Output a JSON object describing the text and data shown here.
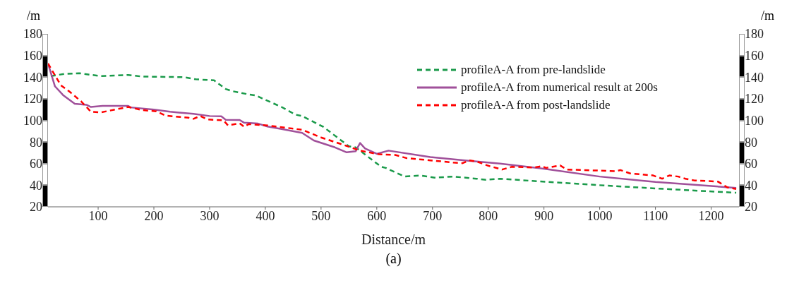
{
  "chart_data": {
    "type": "line",
    "xlabel": "Distance/m",
    "ylabel": "/m",
    "y2label": "/m",
    "annotations": [
      "(a)"
    ],
    "xlim": [
      10,
      1250
    ],
    "xticks": [
      100,
      200,
      300,
      400,
      500,
      600,
      700,
      800,
      900,
      1000,
      1100,
      1200
    ],
    "ylim": [
      20,
      180
    ],
    "yticks": [
      20,
      40,
      60,
      80,
      100,
      120,
      140,
      160,
      180
    ],
    "y2lim": [
      20,
      180
    ],
    "y2ticks": [
      20,
      40,
      60,
      80,
      100,
      120,
      140,
      160,
      180
    ],
    "grid": false,
    "legend": "top right",
    "marker": "none",
    "series": [
      {
        "name": "profileA-A from pre-landslide",
        "color": "#1a9a4a",
        "line_style": "dashed",
        "x": [
          15,
          40,
          66,
          104,
          154,
          179,
          254,
          275,
          308,
          329,
          341,
          370,
          383,
          400,
          429,
          454,
          466,
          504,
          550,
          562,
          608,
          616,
          650,
          679,
          704,
          737,
          779,
          796,
          821,
          879,
          1000,
          1100,
          1245
        ],
        "values": [
          141,
          143,
          143.6,
          141,
          142,
          140.5,
          140,
          138,
          137,
          129,
          127,
          124,
          123,
          119,
          112.4,
          105.3,
          104,
          94,
          76,
          75,
          57,
          56,
          48,
          49,
          47,
          48,
          46,
          45,
          46,
          44,
          40,
          37,
          33
        ]
      },
      {
        "name": "profileA-A from numerical result at 200s",
        "color": "#a0509a",
        "line_style": "solid",
        "x": [
          10,
          22.5,
          37,
          58,
          79,
          87,
          108,
          154,
          158,
          200,
          229,
          271,
          300,
          321,
          329,
          354,
          362,
          387,
          404,
          429,
          466,
          487,
          525,
          546,
          562,
          570,
          579,
          600,
          621,
          696,
          758,
          821,
          904,
          1000,
          1100,
          1245
        ],
        "values": [
          152.6,
          131.5,
          123.4,
          115.4,
          114.4,
          112.4,
          113.4,
          113.4,
          112,
          110,
          108,
          106,
          104,
          103.7,
          100.5,
          100.3,
          97.8,
          97,
          94.3,
          92,
          88.4,
          81.4,
          75,
          70.4,
          71.4,
          79,
          74,
          69,
          72,
          66,
          63,
          60,
          55,
          48,
          43,
          37.5
        ]
      },
      {
        "name": "profileA-A from post-landslide",
        "color": "#ff0000",
        "line_style": "dashed",
        "x": [
          10,
          33,
          49,
          70,
          87,
          104,
          154,
          179,
          204,
          221,
          262,
          271,
          283,
          296,
          325,
          333,
          354,
          362,
          370,
          404,
          466,
          500,
          541,
          570,
          604,
          633,
          654,
          696,
          737,
          754,
          766,
          779,
          800,
          825,
          842,
          883,
          896,
          904,
          929,
          941,
          1029,
          1037,
          1054,
          1096,
          1112,
          1125,
          1141,
          1154,
          1170,
          1212,
          1229,
          1245
        ],
        "values": [
          152.6,
          132.5,
          126.4,
          117.3,
          108,
          107.3,
          112.4,
          109.5,
          108.4,
          104.4,
          102.4,
          101.4,
          104,
          100.8,
          100,
          95.3,
          97.3,
          94,
          96.5,
          95.3,
          91.3,
          84.2,
          77.2,
          72,
          68.6,
          68,
          65,
          63,
          61,
          60.4,
          63,
          62,
          58,
          54.5,
          57,
          56.4,
          57.6,
          56,
          58.3,
          54.5,
          53,
          54,
          51,
          49,
          46,
          49,
          48,
          46,
          44.4,
          43.4,
          38,
          36.5
        ]
      }
    ]
  }
}
